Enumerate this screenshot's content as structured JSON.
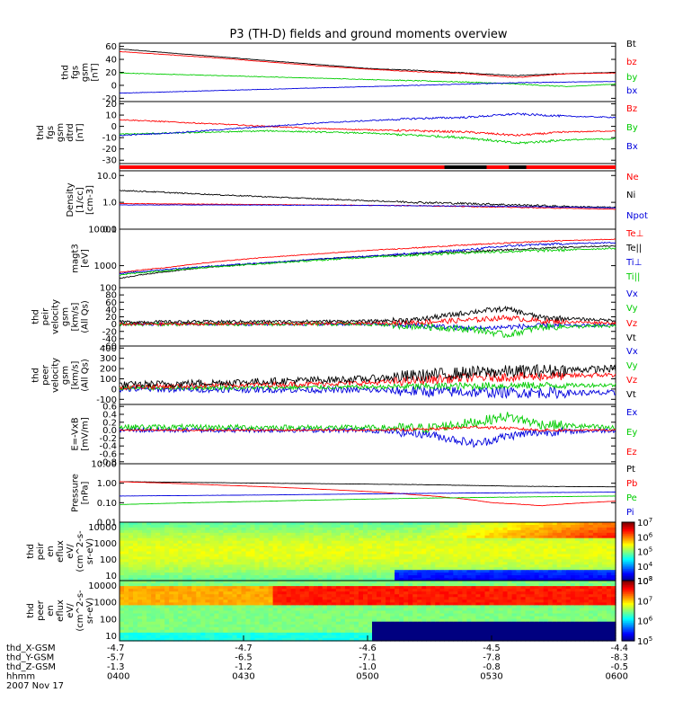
{
  "chart_data": {
    "type": "line",
    "title": "P3 (TH-D) fields and ground moments overview",
    "panels": [
      {
        "id": "fgs_gsm",
        "ylabel": [
          "thd",
          "fgs",
          "gsm",
          "[nT]"
        ],
        "yticks": [
          60,
          40,
          20,
          0,
          -20
        ],
        "ylim": [
          -25,
          65
        ],
        "series": [
          {
            "name": "Bt",
            "color": "#000000",
            "x": [
              0,
              0.1,
              0.2,
              0.3,
              0.4,
              0.5,
              0.6,
              0.7,
              0.8,
              0.9,
              1.0
            ],
            "y": [
              56,
              50,
              44,
              38,
              32,
              26,
              23,
              19,
              15,
              18,
              20
            ],
            "noise": 0.3
          },
          {
            "name": "bz",
            "color": "#ff0000",
            "x": [
              0,
              0.1,
              0.2,
              0.3,
              0.4,
              0.5,
              0.6,
              0.7,
              0.8,
              0.9,
              1.0
            ],
            "y": [
              52,
              47,
              42,
              36,
              30,
              25,
              21,
              18,
              12,
              18,
              19
            ],
            "noise": 0.3
          },
          {
            "name": "by",
            "color": "#00cc00",
            "x": [
              0,
              0.1,
              0.2,
              0.3,
              0.4,
              0.5,
              0.6,
              0.7,
              0.8,
              0.9,
              1.0
            ],
            "y": [
              19,
              17,
              15,
              13,
              11,
              9,
              7,
              5,
              2,
              -2,
              2
            ],
            "noise": 0.4
          },
          {
            "name": "bx",
            "color": "#0000dd",
            "x": [
              0,
              0.1,
              0.2,
              0.3,
              0.4,
              0.5,
              0.6,
              0.7,
              0.8,
              0.9,
              1.0
            ],
            "y": [
              -12,
              -10,
              -8,
              -6,
              -4,
              -2,
              0,
              2,
              4,
              5,
              6
            ],
            "noise": 0.3
          }
        ]
      },
      {
        "id": "fgs_gsm_detrend",
        "ylabel": [
          "thd",
          "fgs",
          "gsm",
          "dtrd",
          "[nT]"
        ],
        "yticks": [
          20,
          10,
          0,
          -10,
          -20,
          -30
        ],
        "ylim": [
          -33,
          22
        ],
        "series": [
          {
            "name": "Bz",
            "color": "#ff0000",
            "x": [
              0,
              0.1,
              0.2,
              0.3,
              0.4,
              0.5,
              0.6,
              0.7,
              0.8,
              0.9,
              1.0
            ],
            "y": [
              6,
              4,
              2,
              0,
              -2,
              -3,
              -4,
              -5,
              -8,
              -5,
              -4
            ],
            "noise": 0.5
          },
          {
            "name": "By",
            "color": "#00cc00",
            "x": [
              0,
              0.1,
              0.2,
              0.3,
              0.4,
              0.5,
              0.6,
              0.7,
              0.8,
              0.9,
              1.0
            ],
            "y": [
              -7,
              -6,
              -5,
              -4,
              -5,
              -6,
              -8,
              -10,
              -15,
              -12,
              -11
            ],
            "noise": 0.6
          },
          {
            "name": "Bx",
            "color": "#0000dd",
            "x": [
              0,
              0.1,
              0.2,
              0.3,
              0.4,
              0.5,
              0.6,
              0.7,
              0.8,
              0.9,
              1.0
            ],
            "y": [
              -8,
              -6,
              -3,
              0,
              3,
              5,
              7,
              8,
              11,
              9,
              8
            ],
            "noise": 0.5
          }
        ]
      },
      {
        "id": "flags",
        "flag": true,
        "bars": [
          {
            "x0": 0,
            "x1": 1.0,
            "color": "#ff0000"
          },
          {
            "x0": 0.655,
            "x1": 0.74,
            "color": "#000000"
          },
          {
            "x0": 0.785,
            "x1": 0.82,
            "color": "#000000"
          }
        ]
      },
      {
        "id": "density",
        "ylabel": [
          "Density",
          "[1/cc]",
          "[cm-3]"
        ],
        "log": true,
        "yticks": [
          10.0,
          1.0,
          0.1
        ],
        "ticklabels": [
          "10.0",
          "1.0",
          "0.1"
        ],
        "ylim": [
          0.1,
          15
        ],
        "series": [
          {
            "name": "Ne",
            "color": "#ff0000",
            "x": [
              0,
              0.2,
              0.4,
              0.6,
              0.8,
              1.0
            ],
            "y": [
              0.9,
              0.85,
              0.8,
              0.75,
              0.65,
              0.55
            ],
            "noise": 0.02
          },
          {
            "name": "Ni",
            "color": "#000000",
            "x": [
              0,
              0.1,
              0.2,
              0.3,
              0.4,
              0.5,
              0.6,
              0.7,
              0.8,
              0.9,
              1.0
            ],
            "y": [
              2.8,
              2.3,
              1.9,
              1.6,
              1.35,
              1.15,
              1.0,
              0.9,
              0.8,
              0.7,
              0.65
            ],
            "noise": 0.05
          },
          {
            "name": "Npot",
            "color": "#0000dd",
            "x": [
              0,
              0.2,
              0.4,
              0.6,
              0.8,
              1.0
            ],
            "y": [
              0.8,
              0.8,
              0.78,
              0.75,
              0.7,
              0.62
            ],
            "noise": 0.02
          }
        ]
      },
      {
        "id": "temp",
        "ylabel": [
          "magt3",
          "[eV]"
        ],
        "log": true,
        "yticks": [
          10000,
          1000
        ],
        "ticklabels": [
          "10000",
          "1000"
        ],
        "ylim": [
          250,
          10000
        ],
        "series": [
          {
            "name": "Te⊥",
            "color": "#ff0000",
            "x": [
              0,
              0.1,
              0.2,
              0.3,
              0.4,
              0.5,
              0.6,
              0.7,
              0.8,
              0.9,
              1.0
            ],
            "y": [
              650,
              900,
              1300,
              1700,
              2100,
              2600,
              3100,
              3700,
              4300,
              4900,
              5300
            ],
            "noise": 0.02
          },
          {
            "name": "Te||",
            "color": "#000000",
            "x": [
              0,
              0.1,
              0.2,
              0.3,
              0.4,
              0.5,
              0.6,
              0.7,
              0.8,
              0.9,
              1.0
            ],
            "y": [
              450,
              700,
              950,
              1200,
              1500,
              1800,
              2100,
              2400,
              2800,
              3200,
              3500
            ],
            "noise": 0.03
          },
          {
            "name": "Ti⊥",
            "color": "#0000dd",
            "x": [
              0,
              0.1,
              0.2,
              0.3,
              0.4,
              0.5,
              0.6,
              0.7,
              0.8,
              0.9,
              1.0
            ],
            "y": [
              600,
              800,
              1000,
              1200,
              1500,
              1800,
              2200,
              2700,
              3600,
              4000,
              4300
            ],
            "noise": 0.04
          },
          {
            "name": "Ti||",
            "color": "#00cc00",
            "x": [
              0,
              0.1,
              0.2,
              0.3,
              0.4,
              0.5,
              0.6,
              0.7,
              0.8,
              0.9,
              1.0
            ],
            "y": [
              560,
              750,
              950,
              1150,
              1400,
              1700,
              2000,
              2300,
              2500,
              2700,
              3000
            ],
            "noise": 0.05
          }
        ]
      },
      {
        "id": "peir_vel",
        "ylabel": [
          "thd",
          "peir",
          "velocity",
          "gsm",
          "[km/s]",
          "(All Qs)"
        ],
        "yticks": [
          100,
          80,
          60,
          40,
          20,
          0,
          -20,
          -40,
          -60
        ],
        "ylim": [
          -60,
          100
        ],
        "series": [
          {
            "name": "Vx",
            "color": "#0000dd",
            "x": [
              0,
              0.5,
              0.6,
              0.72,
              0.78,
              0.85,
              1.0
            ],
            "y": [
              0,
              0,
              -4,
              -12,
              -8,
              -5,
              -3
            ],
            "noise": 4
          },
          {
            "name": "Vy",
            "color": "#00cc00",
            "x": [
              0,
              0.5,
              0.6,
              0.72,
              0.78,
              0.85,
              1.0
            ],
            "y": [
              0,
              0,
              -6,
              -15,
              -30,
              -8,
              -5
            ],
            "noise": 5
          },
          {
            "name": "Vz",
            "color": "#ff0000",
            "x": [
              0,
              0.5,
              0.6,
              0.72,
              0.78,
              0.85,
              1.0
            ],
            "y": [
              0,
              2,
              5,
              12,
              18,
              8,
              3
            ],
            "noise": 4
          },
          {
            "name": "Vt",
            "color": "#000000",
            "x": [
              0,
              0.5,
              0.6,
              0.72,
              0.78,
              0.85,
              1.0
            ],
            "y": [
              6,
              8,
              12,
              35,
              42,
              18,
              10
            ],
            "noise": 4
          }
        ]
      },
      {
        "id": "peer_vel",
        "ylabel": [
          "thd",
          "peer",
          "velocity",
          "gsm",
          "[km/s]",
          "(All Qs)"
        ],
        "yticks": [
          400,
          300,
          200,
          100,
          0,
          -100
        ],
        "ylim": [
          -150,
          420
        ],
        "series": [
          {
            "name": "Vx",
            "color": "#0000dd",
            "x": [
              0,
              0.5,
              0.7,
              1.0
            ],
            "y": [
              0,
              -10,
              -30,
              -40
            ],
            "noise": 30
          },
          {
            "name": "Vy",
            "color": "#00cc00",
            "x": [
              0,
              0.5,
              0.7,
              1.0
            ],
            "y": [
              10,
              20,
              30,
              40
            ],
            "noise": 20
          },
          {
            "name": "Vz",
            "color": "#ff0000",
            "x": [
              0,
              0.5,
              0.7,
              1.0
            ],
            "y": [
              20,
              60,
              110,
              140
            ],
            "noise": 25
          },
          {
            "name": "Vt",
            "color": "#000000",
            "x": [
              0,
              0.5,
              0.7,
              1.0
            ],
            "y": [
              40,
              100,
              160,
              200
            ],
            "noise": 35
          }
        ]
      },
      {
        "id": "efield",
        "ylabel": [
          "E=-VxB",
          "[mV/m]"
        ],
        "yticks": [
          0.6,
          0.4,
          0.2,
          0.0,
          -0.2,
          -0.4,
          -0.6,
          -0.8
        ],
        "ticklabels": [
          "0.6",
          "0.4",
          "0.2",
          "0.0",
          "-0.2",
          "-0.4",
          "-0.6",
          "-0.8"
        ],
        "ylim": [
          -0.85,
          0.65
        ],
        "series": [
          {
            "name": "Ex",
            "color": "#0000dd",
            "x": [
              0,
              0.5,
              0.62,
              0.72,
              0.78,
              0.85,
              1.0
            ],
            "y": [
              0,
              0,
              -0.1,
              -0.35,
              -0.15,
              -0.05,
              0.0
            ],
            "noise": 0.06
          },
          {
            "name": "Ey",
            "color": "#00cc00",
            "x": [
              0,
              0.5,
              0.62,
              0.72,
              0.78,
              0.85,
              1.0
            ],
            "y": [
              0.08,
              0.06,
              0.05,
              0.2,
              0.35,
              0.15,
              0.05
            ],
            "noise": 0.07
          },
          {
            "name": "Ez",
            "color": "#ff0000",
            "x": [
              0,
              0.5,
              0.62,
              0.72,
              0.78,
              0.85,
              1.0
            ],
            "y": [
              0,
              0,
              0.02,
              0.08,
              0.05,
              0,
              0
            ],
            "noise": 0.02
          }
        ]
      },
      {
        "id": "pressure",
        "ylabel": [
          "Pressure",
          "[nPa]"
        ],
        "log": true,
        "yticks": [
          10.0,
          1.0,
          0.1,
          0.01
        ],
        "ticklabels": [
          "10.00",
          "1.00",
          "0.10",
          "0.01"
        ],
        "ylim": [
          0.01,
          10
        ],
        "series": [
          {
            "name": "Pt",
            "color": "#000000",
            "x": [
              0,
              0.3,
              0.6,
              0.8,
              1.0
            ],
            "y": [
              1.2,
              1.0,
              0.85,
              0.7,
              0.65
            ],
            "noise": 0.01
          },
          {
            "name": "Pb",
            "color": "#ff0000",
            "x": [
              0,
              0.2,
              0.4,
              0.6,
              0.75,
              0.85,
              1.0
            ],
            "y": [
              1.2,
              0.8,
              0.5,
              0.25,
              0.1,
              0.07,
              0.12
            ],
            "noise": 0.01
          },
          {
            "name": "Pe",
            "color": "#00cc00",
            "x": [
              0,
              0.3,
              0.6,
              1.0
            ],
            "y": [
              0.08,
              0.12,
              0.17,
              0.22
            ],
            "noise": 0.01
          },
          {
            "name": "Pi",
            "color": "#0000dd",
            "x": [
              0,
              0.3,
              0.6,
              1.0
            ],
            "y": [
              0.22,
              0.25,
              0.3,
              0.35
            ],
            "noise": 0.01
          }
        ]
      },
      {
        "id": "peir_spec",
        "ylabel": [
          "thd",
          "peir",
          "en",
          "eflux",
          "eV/",
          "(cm^2-s-",
          "sr-eV)"
        ],
        "spectrogram": true,
        "log": true,
        "yticks": [
          10000,
          1000,
          100,
          10
        ],
        "ticklabels": [
          "10000",
          "1000",
          "100",
          "10"
        ],
        "ylim": [
          5,
          20000
        ],
        "cbar": {
          "exp": [
            7,
            6,
            5,
            4,
            3
          ],
          "range": [
            3,
            7
          ]
        }
      },
      {
        "id": "peer_spec",
        "ylabel": [
          "thd",
          "peer",
          "en",
          "eflux",
          "eV/",
          "(cm^2-s-",
          "sr-eV)"
        ],
        "spectrogram": true,
        "log": true,
        "yticks": [
          10000,
          1000,
          100,
          10
        ],
        "ticklabels": [
          "10000",
          "1000",
          "100",
          "10"
        ],
        "ylim": [
          5,
          20000
        ],
        "cbar": {
          "exp": [
            8,
            7,
            6,
            5
          ],
          "range": [
            5,
            8
          ]
        }
      }
    ],
    "xaxis": {
      "ticks": [
        0,
        0.25,
        0.5,
        0.75,
        1.0
      ],
      "rows": [
        {
          "label": "thd_X-GSM",
          "values": [
            "-4.7",
            "-4.7",
            "-4.6",
            "-4.5",
            "-4.4"
          ]
        },
        {
          "label": "thd_Y-GSM",
          "values": [
            "-5.7",
            "-6.5",
            "-7.1",
            "-7.8",
            "-8.3"
          ]
        },
        {
          "label": "thd_Z-GSM",
          "values": [
            "-1.3",
            "-1.2",
            "-1.0",
            "-0.8",
            "-0.5"
          ]
        },
        {
          "label": "hhmm",
          "values": [
            "0400",
            "0430",
            "0500",
            "0530",
            "0600"
          ]
        }
      ],
      "date": "2007 Nov 17"
    }
  }
}
